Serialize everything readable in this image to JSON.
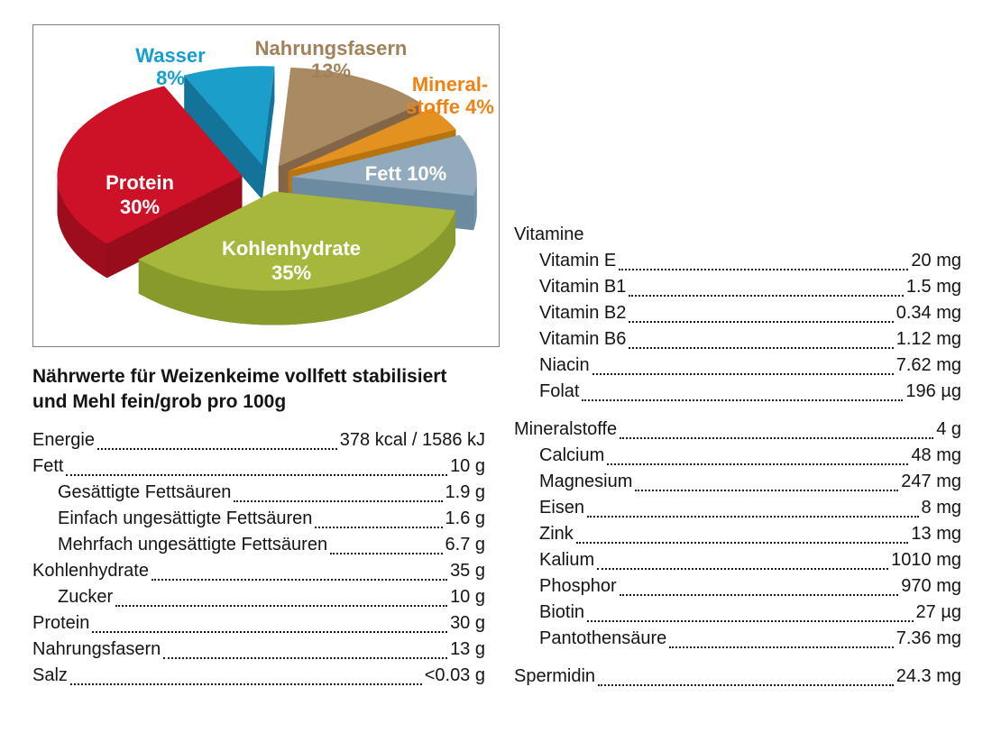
{
  "chart_data": {
    "type": "pie",
    "unit": "%",
    "legend": "none",
    "labels_style": "direct-callouts",
    "slices": [
      {
        "label": "Fett",
        "value": 10,
        "label_lines": [
          "Fett 10%"
        ],
        "color_top": "#91aabc",
        "color_side": "#7291a7",
        "label_color": "#ffffff",
        "label_inside": true
      },
      {
        "label": "Kohlenhydrate",
        "value": 35,
        "label_lines": [
          "Kohlenhydrate",
          "35%"
        ],
        "color_top": "#a6b73b",
        "color_side": "#879a2b",
        "label_color": "#ffffff",
        "label_inside": true
      },
      {
        "label": "Protein",
        "value": 30,
        "label_lines": [
          "Protein",
          "30%"
        ],
        "color_top": "#cd1126",
        "color_side": "#9e0d1d",
        "label_color": "#ffffff",
        "label_inside": true
      },
      {
        "label": "Wasser",
        "value": 8,
        "label_lines": [
          "Wasser",
          "8%"
        ],
        "color_top": "#1b9fca",
        "color_side": "#14789e",
        "label_color": "#149fd0",
        "label_inside": false
      },
      {
        "label": "Nahrungsfasern",
        "value": 13,
        "label_lines": [
          "Nahrungsfasern",
          "13%"
        ],
        "color_top": "#aa8a62",
        "color_side": "#876a4a",
        "label_color": "#a0825a",
        "label_inside": false
      },
      {
        "label": "Mineralstoffe",
        "value": 4,
        "label_lines": [
          "Mineral-",
          "stoffe 4%"
        ],
        "color_top": "#e39120",
        "color_side": "#c2790f",
        "label_color": "#ee8214",
        "label_inside": false
      }
    ]
  },
  "info": {
    "title_lines": [
      "Nährwerte für Weizenkeime vollfett stabilisiert",
      "und Mehl fein/grob pro 100g"
    ],
    "nutrition": [
      {
        "label": "Energie",
        "value": "378 kcal / 1586 kJ",
        "indent": false
      },
      {
        "label": "Fett",
        "value": "10 g",
        "indent": false
      },
      {
        "label": "Gesättigte Fettsäuren",
        "value": "1.9 g",
        "indent": true
      },
      {
        "label": "Einfach ungesättigte Fettsäuren",
        "value": "1.6 g",
        "indent": true
      },
      {
        "label": "Mehrfach ungesättigte Fettsäuren",
        "value": "6.7 g",
        "indent": true
      },
      {
        "label": "Kohlenhydrate",
        "value": "35 g",
        "indent": false
      },
      {
        "label": "Zucker",
        "value": "10 g",
        "indent": true
      },
      {
        "label": "Protein",
        "value": "30 g",
        "indent": false
      },
      {
        "label": "Nahrungsfasern",
        "value": "13 g",
        "indent": false
      },
      {
        "label": "Salz",
        "value": "<0.03 g",
        "indent": false
      }
    ],
    "vitamins": {
      "header": "Vitamine",
      "items": [
        {
          "label": "Vitamin E",
          "value": "20 mg",
          "indent": true
        },
        {
          "label": "Vitamin B1",
          "value": "1.5 mg",
          "indent": true
        },
        {
          "label": "Vitamin B2",
          "value": "0.34 mg",
          "indent": true
        },
        {
          "label": "Vitamin B6",
          "value": "1.12 mg",
          "indent": true
        },
        {
          "label": "Niacin",
          "value": "7.62 mg",
          "indent": true
        },
        {
          "label": "Folat",
          "value": "196 µg",
          "indent": true
        }
      ]
    },
    "minerals": {
      "header": "Mineralstoffe",
      "header_value": "4 g",
      "items": [
        {
          "label": "Calcium",
          "value": "48 mg",
          "indent": true
        },
        {
          "label": "Magnesium",
          "value": "247 mg",
          "indent": true
        },
        {
          "label": "Eisen",
          "value": "8 mg",
          "indent": true
        },
        {
          "label": "Zink",
          "value": "13 mg",
          "indent": true
        },
        {
          "label": "Kalium",
          "value": "1010 mg",
          "indent": true
        },
        {
          "label": "Phosphor",
          "value": "970 mg",
          "indent": true
        },
        {
          "label": "Biotin",
          "value": "27 µg",
          "indent": true
        },
        {
          "label": "Pantothensäure",
          "value": "7.36 mg",
          "indent": true
        }
      ]
    },
    "spermidin": {
      "label": "Spermidin",
      "value": "24.3 mg"
    }
  }
}
